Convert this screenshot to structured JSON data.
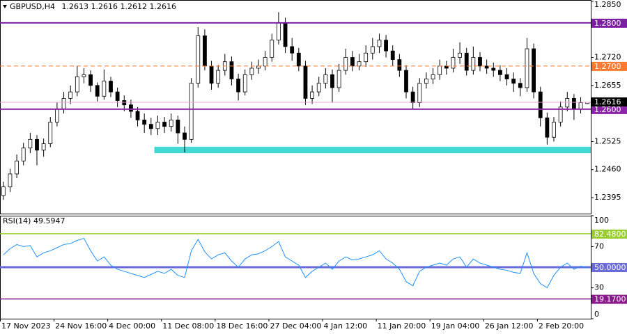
{
  "chart_data": [
    {
      "type": "candlestick",
      "title": "GBPUSD,H4",
      "categories": [
        "17 Nov 2023",
        null,
        null,
        null,
        null,
        null,
        null,
        null,
        "24 Nov 16:00",
        null,
        null,
        null,
        null,
        null,
        null,
        null,
        "4 Dec 00:00",
        null,
        null,
        null,
        null,
        null,
        null,
        null,
        "11 Dec 08:00",
        null,
        null,
        null,
        null,
        null,
        null,
        null,
        "18 Dec 16:00",
        null,
        null,
        null,
        null,
        null,
        null,
        null,
        "27 Dec 04:00",
        null,
        null,
        null,
        null,
        null,
        null,
        null,
        "4 Jan 12:00",
        null,
        null,
        null,
        null,
        null,
        null,
        null,
        "11 Jan 20:00",
        null,
        null,
        null,
        null,
        null,
        null,
        null,
        "19 Jan 04:00",
        null,
        null,
        null,
        null,
        null,
        null,
        null,
        "26 Jan 12:00",
        null,
        null,
        null,
        null,
        null,
        null,
        null,
        "2 Feb 20:00",
        null,
        null,
        null,
        null,
        null,
        null,
        null
      ],
      "open": [
        1.24,
        1.242,
        1.245,
        1.248,
        1.251,
        1.253,
        1.2505,
        1.252,
        1.257,
        1.26,
        1.2625,
        1.264,
        1.2675,
        1.268,
        1.2655,
        1.263,
        1.2665,
        1.264,
        1.262,
        1.261,
        1.2595,
        1.2575,
        1.2565,
        1.2555,
        1.257,
        1.256,
        1.2575,
        1.2545,
        1.253,
        1.266,
        1.277,
        1.27,
        1.266,
        1.269,
        1.271,
        1.267,
        1.264,
        1.268,
        1.2695,
        1.27,
        1.272,
        1.276,
        1.28,
        1.2745,
        1.273,
        1.27,
        1.2625,
        1.264,
        1.266,
        1.268,
        1.265,
        1.269,
        1.272,
        1.27,
        1.271,
        1.273,
        1.2745,
        1.276,
        1.2735,
        1.2715,
        1.269,
        1.264,
        1.2615,
        1.266,
        1.267,
        1.268,
        1.27,
        1.2695,
        1.272,
        1.273,
        1.269,
        1.272,
        1.27,
        1.2695,
        1.269,
        1.268,
        1.267,
        1.266,
        1.265,
        1.274,
        1.264,
        1.258,
        1.2535,
        1.257,
        1.2605,
        1.2625,
        1.26,
        1.2613
      ],
      "high": [
        1.2432,
        1.2462,
        1.2495,
        1.2522,
        1.2545,
        1.254,
        1.2532,
        1.2582,
        1.2615,
        1.264,
        1.2655,
        1.27,
        1.2695,
        1.269,
        1.2662,
        1.2692,
        1.2675,
        1.265,
        1.2632,
        1.2622,
        1.2605,
        1.259,
        1.258,
        1.2585,
        1.2582,
        1.259,
        1.2585,
        1.256,
        1.2672,
        1.279,
        1.2785,
        1.2712,
        1.2702,
        1.2728,
        1.2722,
        1.2682,
        1.2692,
        1.271,
        1.2715,
        1.2735,
        1.2775,
        1.2825,
        1.2812,
        1.2765,
        1.2742,
        1.2712,
        1.2655,
        1.2675,
        1.2695,
        1.2692,
        1.2705,
        1.274,
        1.2735,
        1.2728,
        1.2748,
        1.2765,
        1.2775,
        1.2772,
        1.2748,
        1.2728,
        1.2702,
        1.2652,
        1.2672,
        1.2685,
        1.2695,
        1.2715,
        1.2712,
        1.274,
        1.2755,
        1.2742,
        1.2745,
        1.2732,
        1.2715,
        1.2708,
        1.2702,
        1.2695,
        1.2685,
        1.2672,
        1.2765,
        1.2752,
        1.2652,
        1.2592,
        1.2582,
        1.2618,
        1.264,
        1.2635,
        1.2628,
        1.2616
      ],
      "low": [
        1.239,
        1.2408,
        1.244,
        1.247,
        1.2498,
        1.247,
        1.249,
        1.2512,
        1.256,
        1.259,
        1.2612,
        1.263,
        1.266,
        1.264,
        1.2618,
        1.2622,
        1.2628,
        1.2605,
        1.2595,
        1.258,
        1.256,
        1.2545,
        1.254,
        1.254,
        1.2545,
        1.2548,
        1.252,
        1.25,
        1.2522,
        1.265,
        1.269,
        1.2645,
        1.265,
        1.2678,
        1.2655,
        1.262,
        1.2632,
        1.2668,
        1.2682,
        1.269,
        1.271,
        1.275,
        1.273,
        1.2712,
        1.2688,
        1.261,
        1.2612,
        1.263,
        1.2648,
        1.2615,
        1.264,
        1.268,
        1.2688,
        1.269,
        1.2698,
        1.2715,
        1.273,
        1.272,
        1.27,
        1.2675,
        1.2625,
        1.26,
        1.2605,
        1.2648,
        1.2658,
        1.2668,
        1.268,
        1.2685,
        1.2705,
        1.2678,
        1.268,
        1.2688,
        1.2682,
        1.2675,
        1.2665,
        1.2655,
        1.264,
        1.263,
        1.264,
        1.2625,
        1.256,
        1.2518,
        1.2525,
        1.256,
        1.2595,
        1.2575,
        1.259,
        1.2612
      ],
      "close": [
        1.242,
        1.245,
        1.248,
        1.251,
        1.253,
        1.2505,
        1.252,
        1.257,
        1.26,
        1.2625,
        1.264,
        1.2675,
        1.268,
        1.2655,
        1.263,
        1.2665,
        1.264,
        1.262,
        1.261,
        1.2595,
        1.2575,
        1.2565,
        1.2555,
        1.257,
        1.256,
        1.2575,
        1.2545,
        1.253,
        1.266,
        1.277,
        1.27,
        1.266,
        1.269,
        1.271,
        1.267,
        1.264,
        1.268,
        1.2695,
        1.27,
        1.272,
        1.276,
        1.28,
        1.2745,
        1.273,
        1.27,
        1.2625,
        1.264,
        1.266,
        1.268,
        1.265,
        1.269,
        1.272,
        1.27,
        1.271,
        1.273,
        1.2745,
        1.276,
        1.2735,
        1.2715,
        1.269,
        1.264,
        1.2615,
        1.266,
        1.267,
        1.268,
        1.27,
        1.2695,
        1.272,
        1.273,
        1.269,
        1.272,
        1.27,
        1.2695,
        1.269,
        1.268,
        1.267,
        1.266,
        1.265,
        1.274,
        1.264,
        1.258,
        1.2535,
        1.257,
        1.2605,
        1.2625,
        1.26,
        1.2615,
        1.2616
      ],
      "ylim": [
        1.2358,
        1.2853
      ],
      "yticks": [
        {
          "value": 1.285,
          "label": "1.2850"
        },
        {
          "value": 1.272,
          "label": "1.2720"
        },
        1.2655,
        1.2525,
        {
          "value": 1.246,
          "label": "1.2460"
        },
        1.2395
      ],
      "levels": [
        {
          "value": 1.28,
          "label": "1.2800",
          "color": "#7b1fa2",
          "style": "solid"
        },
        {
          "value": 1.27,
          "label": "1.2700",
          "color": "#ff7a30",
          "style": "dashed"
        },
        {
          "value": 1.26,
          "label": "1.2600",
          "color": "#8e24aa",
          "style": "solid"
        }
      ],
      "zone": {
        "low": 1.2498,
        "high": 1.2513,
        "start": 23,
        "color": "#40d8d0"
      },
      "price_line_color": "#e8a0d8"
    },
    {
      "type": "line",
      "title": "RSI(14)",
      "color": "#1e90ff",
      "values": [
        62,
        68,
        72,
        70,
        71,
        60,
        64,
        66,
        69,
        72,
        73,
        76,
        78,
        66,
        56,
        60,
        52,
        48,
        46,
        44,
        42,
        40,
        43,
        46,
        44,
        48,
        42,
        40,
        66,
        77,
        65,
        58,
        62,
        64,
        56,
        50,
        58,
        62,
        63,
        66,
        70,
        75,
        60,
        56,
        52,
        40,
        46,
        50,
        54,
        48,
        56,
        60,
        57,
        58,
        60,
        62,
        66,
        58,
        54,
        48,
        36,
        32,
        46,
        50,
        52,
        54,
        52,
        58,
        60,
        50,
        58,
        54,
        52,
        50,
        48,
        47,
        45,
        44,
        64,
        44,
        34,
        30,
        42,
        50,
        54,
        48,
        51,
        49.5947
      ],
      "ylim": [
        0,
        100
      ],
      "yticks": [
        100,
        70,
        30,
        0
      ],
      "levels": [
        {
          "value": 82.48,
          "label": "82.4800",
          "color": "#9acd32"
        },
        {
          "value": 50,
          "label": "50.0000",
          "color": "#6a6ad8"
        },
        {
          "value": 19.17,
          "label": "19.1700",
          "color": "#8b1a8b"
        }
      ]
    }
  ]
}
